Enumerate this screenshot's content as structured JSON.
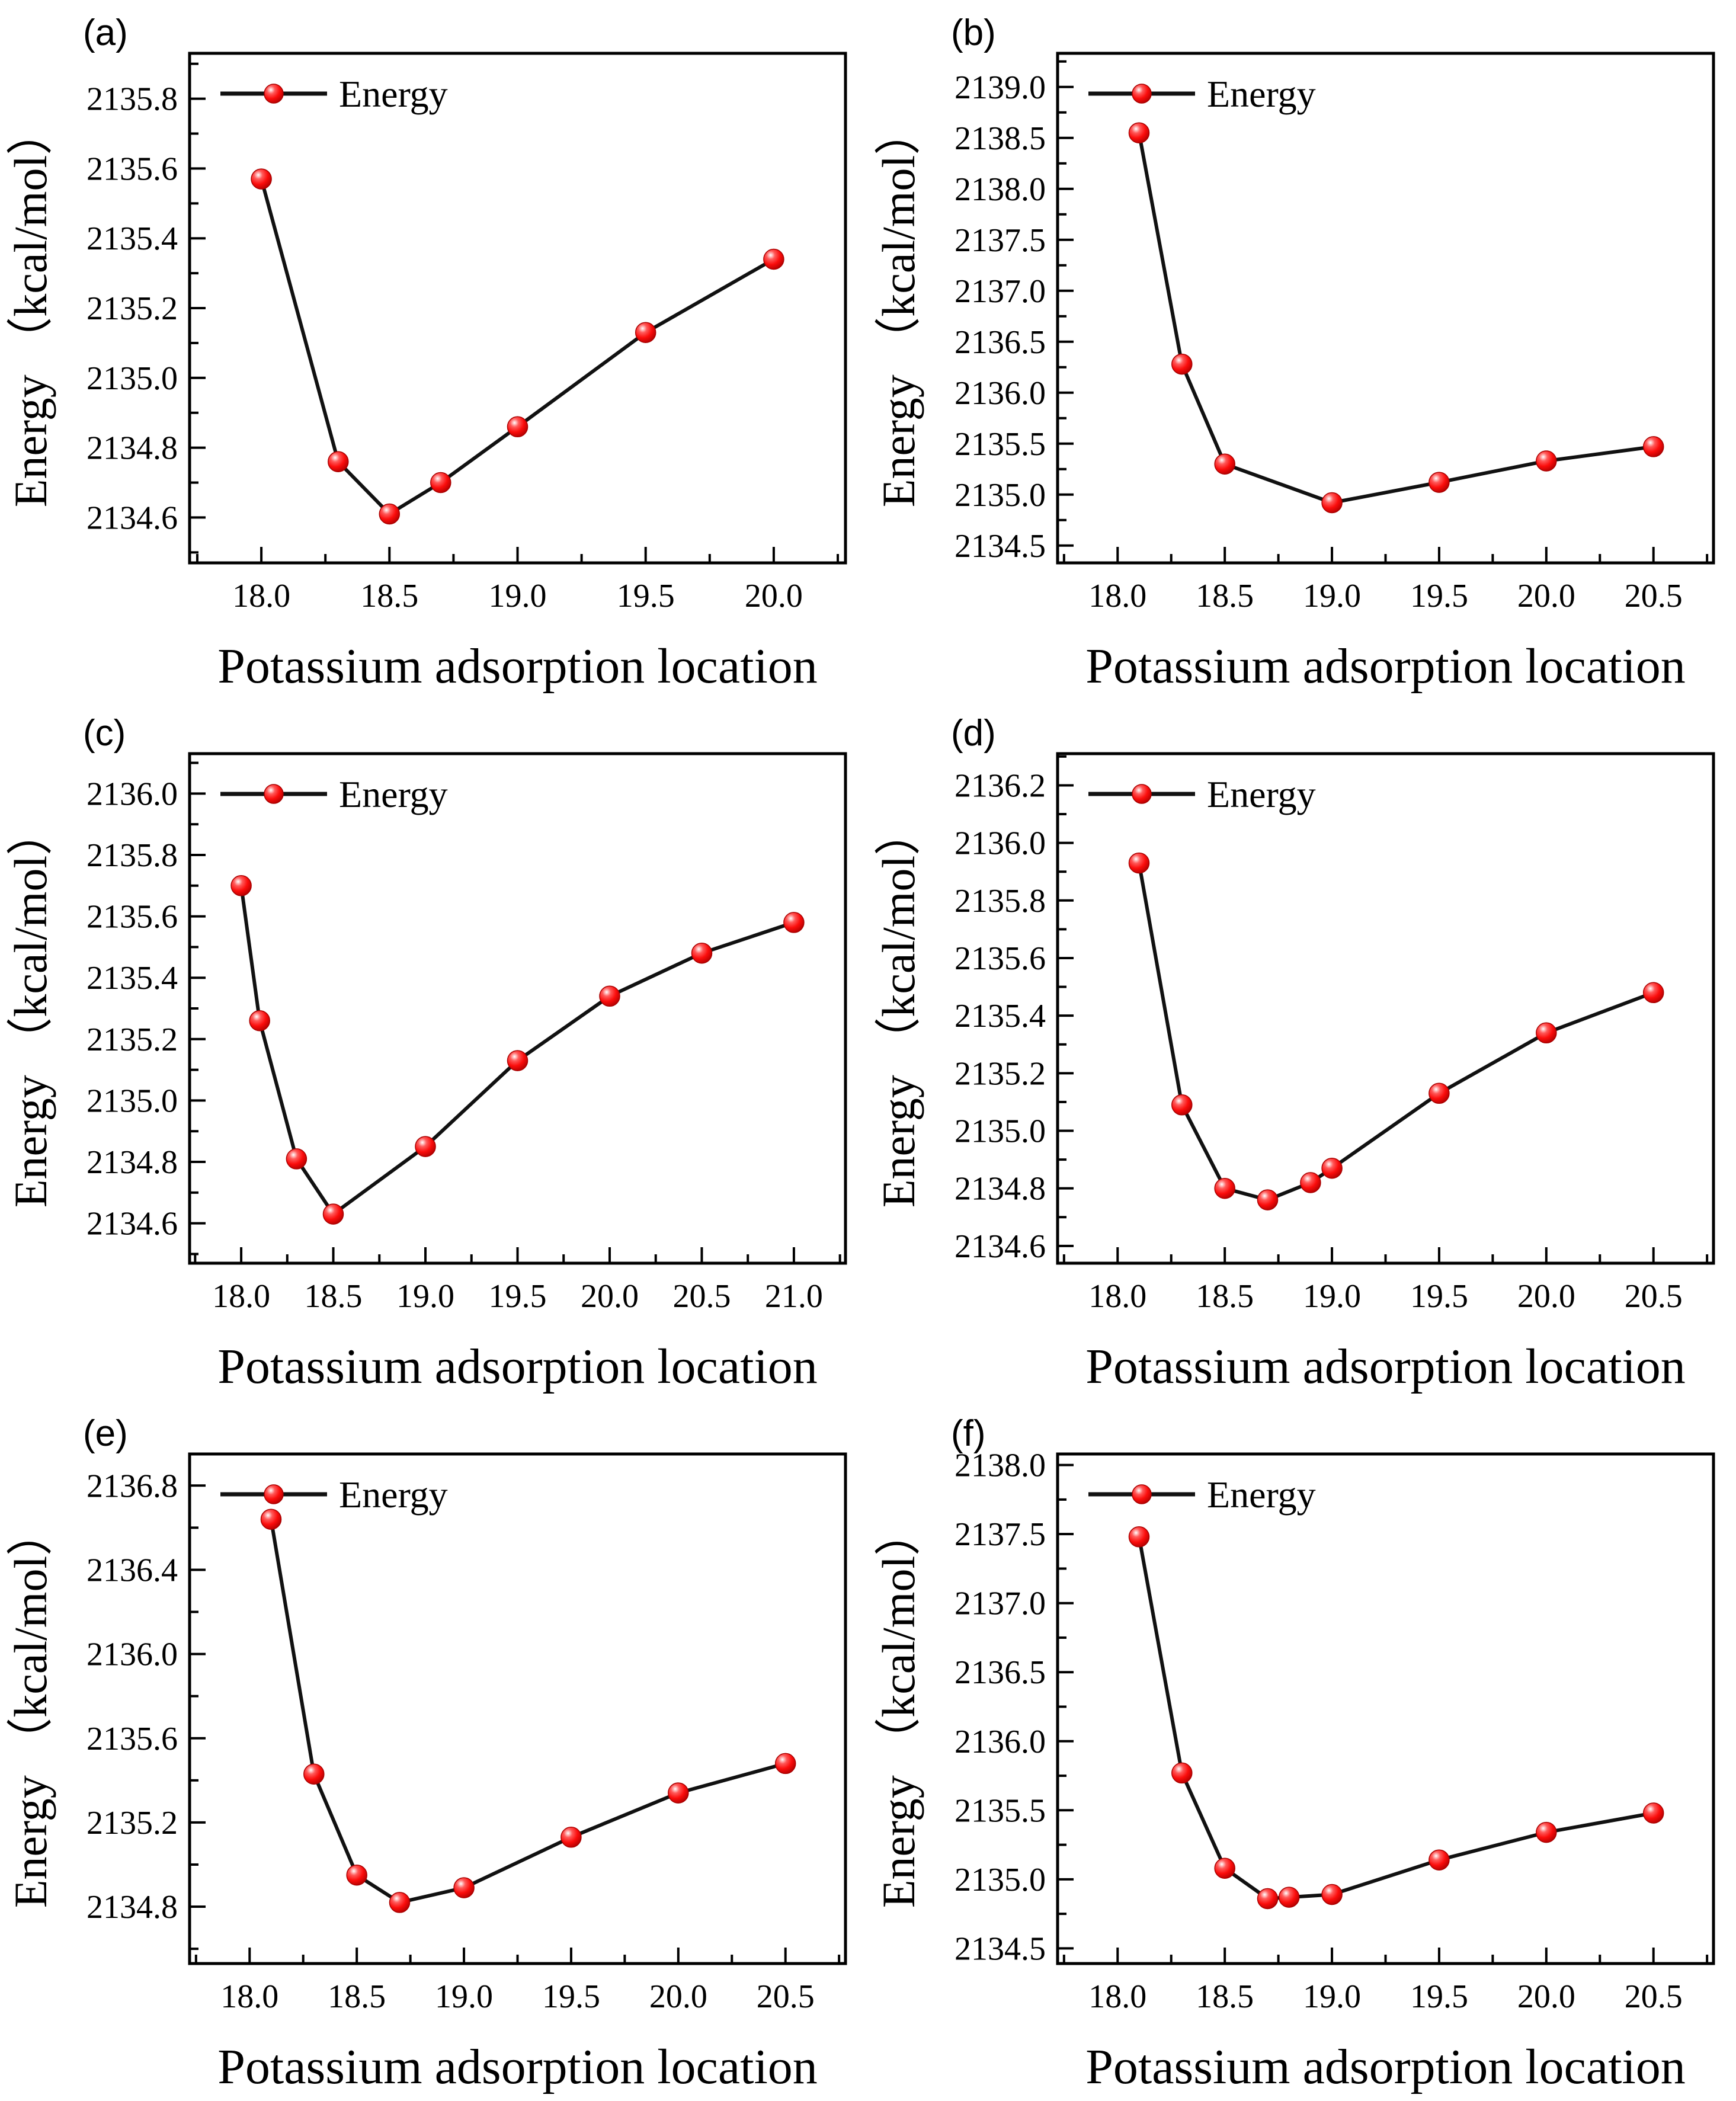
{
  "style": {
    "background_color": "#ffffff",
    "axis_color": "#000000",
    "line_color": "#111111",
    "marker_color": "#fb0d0c",
    "marker_edge_color": "#a80000",
    "marker_highlight_color": "#ffffff",
    "text_color": "#000000"
  },
  "chart_data": [
    {
      "panel_label": "(a)",
      "type": "line",
      "xlabel": "Potassium adsorption location",
      "ylabel": "Energy （kcal/mol）",
      "legend": {
        "label": "Energy",
        "position": "top-left"
      },
      "xlim": [
        17.72,
        20.28
      ],
      "ylim": [
        2134.47,
        2135.93
      ],
      "xticks": [
        18.0,
        18.5,
        19.0,
        19.5,
        20.0
      ],
      "xticklabels": [
        "18.0",
        "18.5",
        "19.0",
        "19.5",
        "20.0"
      ],
      "yticks": [
        2134.6,
        2134.8,
        2135.0,
        2135.2,
        2135.4,
        2135.6,
        2135.8
      ],
      "yticklabels": [
        "2134.6",
        "2134.8",
        "2135.0",
        "2135.2",
        "2135.4",
        "2135.6",
        "2135.8"
      ],
      "series": [
        {
          "name": "Energy",
          "x": [
            18.0,
            18.3,
            18.5,
            18.7,
            19.0,
            19.5,
            20.0
          ],
          "y": [
            2135.57,
            2134.76,
            2134.61,
            2134.7,
            2134.86,
            2135.13,
            2135.34
          ]
        }
      ]
    },
    {
      "panel_label": "(b)",
      "type": "line",
      "xlabel": "Potassium adsorption location",
      "ylabel": "Energy （kcal/mol）",
      "legend": {
        "label": "Energy",
        "position": "top-left"
      },
      "xlim": [
        17.72,
        20.78
      ],
      "ylim": [
        2134.33,
        2139.33
      ],
      "xticks": [
        18.0,
        18.5,
        19.0,
        19.5,
        20.0,
        20.5
      ],
      "xticklabels": [
        "18.0",
        "18.5",
        "19.0",
        "19.5",
        "20.0",
        "20.5"
      ],
      "yticks": [
        2134.5,
        2135.0,
        2135.5,
        2136.0,
        2136.5,
        2137.0,
        2137.5,
        2138.0,
        2138.5,
        2139.0
      ],
      "yticklabels": [
        "2134.5",
        "2135.0",
        "2135.5",
        "2136.0",
        "2136.5",
        "2137.0",
        "2137.5",
        "2138.0",
        "2138.5",
        "2139.0"
      ],
      "series": [
        {
          "name": "Energy",
          "x": [
            18.1,
            18.3,
            18.5,
            19.0,
            19.5,
            20.0,
            20.5
          ],
          "y": [
            2138.55,
            2136.28,
            2135.3,
            2134.92,
            2135.12,
            2135.33,
            2135.47
          ]
        }
      ]
    },
    {
      "panel_label": "(c)",
      "type": "line",
      "xlabel": "Potassium adsorption location",
      "ylabel": "Energy （kcal/mol）",
      "legend": {
        "label": "Energy",
        "position": "top-left"
      },
      "xlim": [
        17.72,
        21.28
      ],
      "ylim": [
        2134.47,
        2136.13
      ],
      "xticks": [
        18.0,
        18.5,
        19.0,
        19.5,
        20.0,
        20.5,
        21.0
      ],
      "xticklabels": [
        "18.0",
        "18.5",
        "19.0",
        "19.5",
        "20.0",
        "20.5",
        "21.0"
      ],
      "yticks": [
        2134.6,
        2134.8,
        2135.0,
        2135.2,
        2135.4,
        2135.6,
        2135.8,
        2136.0
      ],
      "yticklabels": [
        "2134.6",
        "2134.8",
        "2135.0",
        "2135.2",
        "2135.4",
        "2135.6",
        "2135.8",
        "2136.0"
      ],
      "series": [
        {
          "name": "Energy",
          "x": [
            18.0,
            18.1,
            18.3,
            18.5,
            19.0,
            19.5,
            20.0,
            20.5,
            21.0
          ],
          "y": [
            2135.7,
            2135.26,
            2134.81,
            2134.63,
            2134.85,
            2135.13,
            2135.34,
            2135.48,
            2135.58
          ]
        }
      ]
    },
    {
      "panel_label": "(d)",
      "type": "line",
      "xlabel": "Potassium adsorption location",
      "ylabel": "Energy （kcal/mol）",
      "legend": {
        "label": "Energy",
        "position": "top-left"
      },
      "xlim": [
        17.72,
        20.78
      ],
      "ylim": [
        2134.54,
        2136.31
      ],
      "xticks": [
        18.0,
        18.5,
        19.0,
        19.5,
        20.0,
        20.5
      ],
      "xticklabels": [
        "18.0",
        "18.5",
        "19.0",
        "19.5",
        "20.0",
        "20.5"
      ],
      "yticks": [
        2134.6,
        2134.8,
        2135.0,
        2135.2,
        2135.4,
        2135.6,
        2135.8,
        2136.0,
        2136.2
      ],
      "yticklabels": [
        "2134.6",
        "2134.8",
        "2135.0",
        "2135.2",
        "2135.4",
        "2135.6",
        "2135.8",
        "2136.0",
        "2136.2"
      ],
      "series": [
        {
          "name": "Energy",
          "x": [
            18.1,
            18.3,
            18.5,
            18.7,
            18.9,
            19.0,
            19.5,
            20.0,
            20.5
          ],
          "y": [
            2135.93,
            2135.09,
            2134.8,
            2134.76,
            2134.82,
            2134.87,
            2135.13,
            2135.34,
            2135.48
          ]
        }
      ]
    },
    {
      "panel_label": "(e)",
      "type": "line",
      "xlabel": "Potassium adsorption location",
      "ylabel": "Energy （kcal/mol）",
      "legend": {
        "label": "Energy",
        "position": "top-left"
      },
      "xlim": [
        17.72,
        20.78
      ],
      "ylim": [
        2134.53,
        2136.95
      ],
      "xticks": [
        18.0,
        18.5,
        19.0,
        19.5,
        20.0,
        20.5
      ],
      "xticklabels": [
        "18.0",
        "18.5",
        "19.0",
        "19.5",
        "20.0",
        "20.5"
      ],
      "yticks": [
        2134.8,
        2135.2,
        2135.6,
        2136.0,
        2136.4,
        2136.8
      ],
      "yticklabels": [
        "2134.8",
        "2135.2",
        "2135.6",
        "2136.0",
        "2136.4",
        "2136.8"
      ],
      "series": [
        {
          "name": "Energy",
          "x": [
            18.1,
            18.3,
            18.5,
            18.7,
            19.0,
            19.5,
            20.0,
            20.5
          ],
          "y": [
            2136.64,
            2135.43,
            2134.95,
            2134.82,
            2134.89,
            2135.13,
            2135.34,
            2135.48
          ]
        }
      ]
    },
    {
      "panel_label": "(f)",
      "type": "line",
      "xlabel": "Potassium adsorption location",
      "ylabel": "Energy （kcal/mol）",
      "legend": {
        "label": "Energy",
        "position": "top-left"
      },
      "xlim": [
        17.72,
        20.78
      ],
      "ylim": [
        2134.39,
        2138.08
      ],
      "xticks": [
        18.0,
        18.5,
        19.0,
        19.5,
        20.0,
        20.5
      ],
      "xticklabels": [
        "18.0",
        "18.5",
        "19.0",
        "19.5",
        "20.0",
        "20.5"
      ],
      "yticks": [
        2134.5,
        2135.0,
        2135.5,
        2136.0,
        2136.5,
        2137.0,
        2137.5,
        2138.0
      ],
      "yticklabels": [
        "2134.5",
        "2135.0",
        "2135.5",
        "2136.0",
        "2136.5",
        "2137.0",
        "2137.5",
        "2138.0"
      ],
      "series": [
        {
          "name": "Energy",
          "x": [
            18.1,
            18.3,
            18.5,
            18.7,
            18.8,
            19.0,
            19.5,
            20.0,
            20.5
          ],
          "y": [
            2137.48,
            2135.77,
            2135.08,
            2134.86,
            2134.87,
            2134.89,
            2135.14,
            2135.34,
            2135.48
          ]
        }
      ]
    }
  ]
}
